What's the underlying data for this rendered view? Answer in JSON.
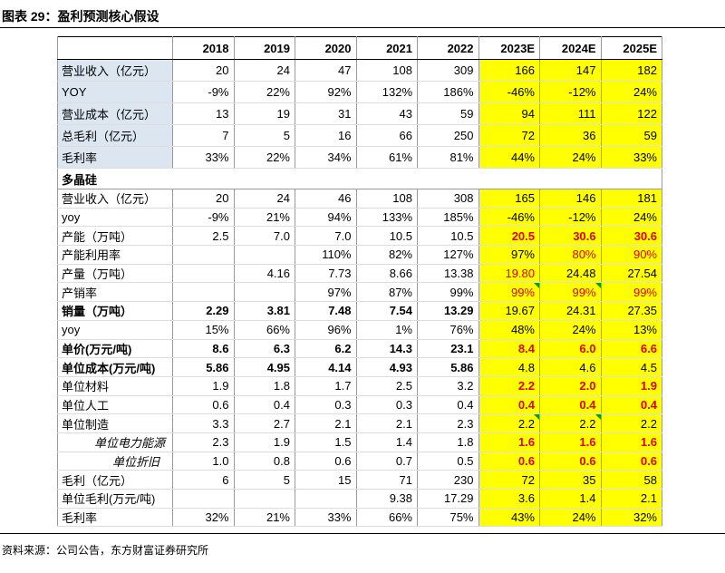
{
  "header": {
    "title": "图表 29：盈利预测核心假设"
  },
  "table": {
    "columns": [
      "2018",
      "2019",
      "2020",
      "2021",
      "2022",
      "2023E",
      "2024E",
      "2025E"
    ],
    "rows": [
      [
        "营业收入（亿元）",
        "20",
        "24",
        "47",
        "108",
        "309",
        "166",
        "147",
        "182"
      ],
      [
        "YOY",
        "-9%",
        "22%",
        "92%",
        "132%",
        "186%",
        "-46%",
        "-12%",
        "24%"
      ],
      [
        "营业成本（亿元）",
        "13",
        "19",
        "31",
        "43",
        "59",
        "94",
        "111",
        "122"
      ],
      [
        "总毛利（亿元）",
        "7",
        "5",
        "16",
        "66",
        "250",
        "72",
        "36",
        "59"
      ],
      [
        "毛利率",
        "33%",
        "22%",
        "34%",
        "61%",
        "81%",
        "44%",
        "24%",
        "33%"
      ],
      [
        "多晶硅"
      ],
      [
        "营业收入（亿元）",
        "20",
        "24",
        "46",
        "108",
        "308",
        "165",
        "146",
        "181"
      ],
      [
        "yoy",
        "-9%",
        "21%",
        "94%",
        "133%",
        "185%",
        "-46%",
        "-12%",
        "24%"
      ],
      [
        "产能（万吨）",
        "2.5",
        "7.0",
        "7.0",
        "10.5",
        "10.5",
        "20.5",
        "30.6",
        "30.6"
      ],
      [
        "产能利用率",
        null,
        null,
        "110%",
        "82%",
        "127%",
        "97%",
        "80%",
        "90%"
      ],
      [
        "产量（万吨）",
        null,
        "4.16",
        "7.73",
        "8.66",
        "13.38",
        "19.80",
        "24.48",
        "27.54"
      ],
      [
        "产销率",
        null,
        null,
        "97%",
        "87%",
        "99%",
        "99%",
        "99%",
        "99%"
      ],
      [
        "销量（万吨）",
        "2.29",
        "3.81",
        "7.48",
        "7.54",
        "13.29",
        "19.67",
        "24.31",
        "27.35"
      ],
      [
        "yoy",
        "15%",
        "66%",
        "96%",
        "1%",
        "76%",
        "48%",
        "24%",
        "13%"
      ],
      [
        "单价(万元/吨)",
        "8.6",
        "6.3",
        "6.2",
        "14.3",
        "23.1",
        "8.4",
        "6.0",
        "6.6"
      ],
      [
        "单位成本(万元/吨)",
        "5.86",
        "4.95",
        "4.14",
        "4.93",
        "5.86",
        "4.8",
        "4.6",
        "4.5"
      ],
      [
        "单位材料",
        "1.9",
        "1.8",
        "1.7",
        "2.5",
        "3.2",
        "2.2",
        "2.0",
        "1.9"
      ],
      [
        "单位人工",
        "0.6",
        "0.4",
        "0.3",
        "0.3",
        "0.4",
        "0.4",
        "0.4",
        "0.4"
      ],
      [
        "单位制造",
        "3.3",
        "2.7",
        "2.1",
        "2.1",
        "2.3",
        "2.2",
        "2.2",
        "2.2"
      ],
      [
        "单位电力能源",
        "2.3",
        "1.9",
        "1.5",
        "1.4",
        "1.8",
        "1.6",
        "1.6",
        "1.6"
      ],
      [
        "单位折旧",
        "1.0",
        "0.8",
        "0.6",
        "0.7",
        "0.5",
        "0.6",
        "0.6",
        "0.6"
      ],
      [
        "毛利（亿元）",
        "6",
        "5",
        "15",
        "71",
        "230",
        "72",
        "35",
        "58"
      ],
      [
        "单位毛利(万元/吨)",
        null,
        null,
        null,
        "9.38",
        "17.29",
        "3.6",
        "1.4",
        "2.1"
      ],
      [
        "毛利率",
        "32%",
        "21%",
        "33%",
        "66%",
        "75%",
        "43%",
        "24%",
        "32%"
      ]
    ]
  },
  "source": "资料来源：公司公告，东方财富证券研究所"
}
